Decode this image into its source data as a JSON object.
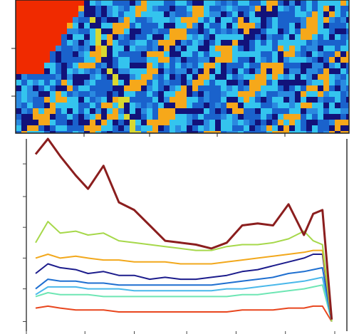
{
  "chart_data": {
    "type": "line",
    "x": [
      3,
      7,
      11,
      16,
      20,
      25,
      30,
      35,
      40,
      45,
      50,
      55,
      60,
      65,
      70,
      75,
      80,
      85,
      90,
      93,
      96,
      99
    ],
    "series": [
      {
        "color": "#8b1e1e",
        "values": [
          92,
          100,
          91,
          81,
          74,
          86,
          67,
          63,
          55,
          47,
          46,
          45,
          43,
          46,
          55,
          56,
          55,
          66,
          50,
          61,
          63,
          6
        ]
      },
      {
        "color": "#a6d84a",
        "values": [
          46,
          57,
          51,
          52,
          50,
          51,
          47,
          46,
          45,
          44,
          43,
          42,
          42,
          44,
          45,
          45,
          46,
          48,
          52,
          47,
          45,
          5
        ]
      },
      {
        "color": "#f2a81c",
        "values": [
          38,
          40,
          38,
          39,
          38,
          37,
          37,
          36,
          36,
          36,
          35,
          35,
          35,
          36,
          37,
          38,
          39,
          40,
          41,
          42,
          42,
          5
        ]
      },
      {
        "color": "#1c1c8c",
        "values": [
          30,
          35,
          33,
          32,
          30,
          31,
          29,
          29,
          27,
          28,
          27,
          27,
          28,
          29,
          31,
          32,
          34,
          36,
          38,
          40,
          40,
          5
        ]
      },
      {
        "color": "#1f6fd0",
        "values": [
          22,
          27,
          26,
          26,
          25,
          25,
          24,
          24,
          24,
          24,
          24,
          24,
          24,
          25,
          26,
          27,
          28,
          30,
          31,
          32,
          33,
          5
        ]
      },
      {
        "color": "#4ab8ea",
        "values": [
          19,
          23,
          23,
          23,
          22,
          22,
          22,
          21,
          21,
          21,
          21,
          21,
          21,
          22,
          22,
          23,
          24,
          25,
          26,
          27,
          28,
          5
        ]
      },
      {
        "color": "#6ee6b4",
        "values": [
          18,
          20,
          19,
          19,
          19,
          18,
          18,
          18,
          18,
          18,
          18,
          18,
          18,
          18,
          19,
          19,
          20,
          21,
          22,
          23,
          24,
          5
        ]
      },
      {
        "color": "#e8461e",
        "values": [
          12,
          13,
          12,
          11,
          11,
          11,
          10,
          10,
          10,
          10,
          10,
          10,
          10,
          10,
          11,
          11,
          11,
          12,
          12,
          13,
          13,
          5
        ]
      }
    ],
    "xlim": [
      0,
      100
    ],
    "ylim": [
      0,
      100
    ],
    "xticks": [
      0,
      19,
      35,
      52,
      68,
      84,
      100
    ],
    "yticks": [
      5,
      22,
      38,
      54,
      70,
      87
    ]
  }
}
